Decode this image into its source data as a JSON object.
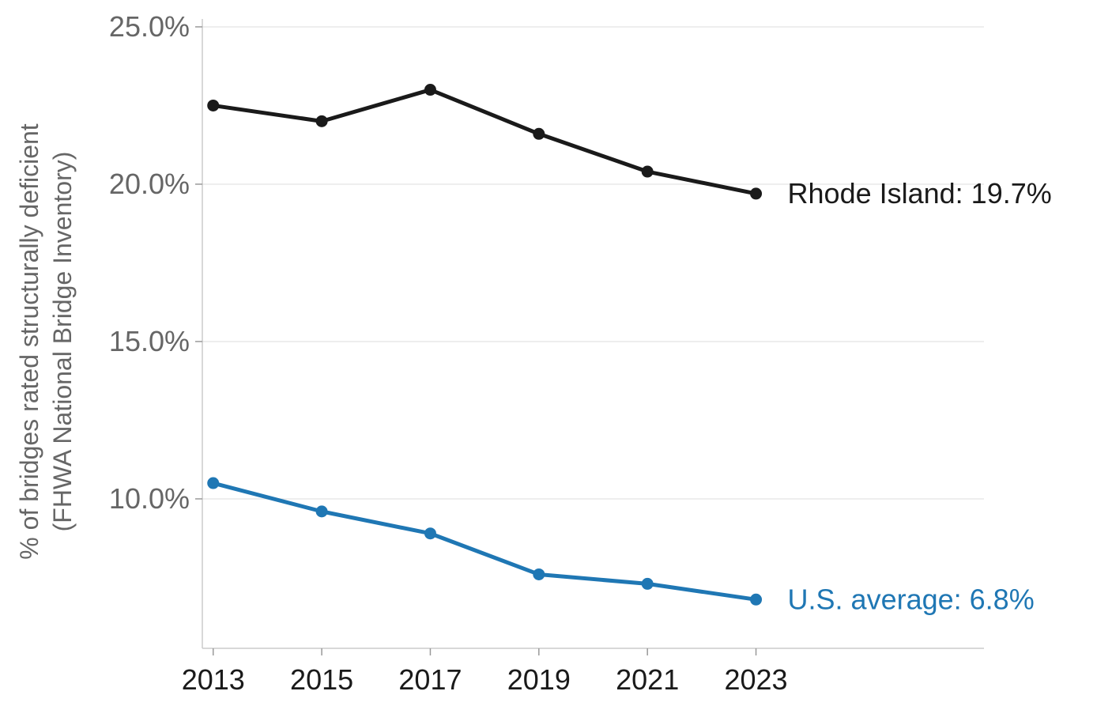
{
  "chart_data": {
    "type": "line",
    "title": "",
    "xlabel": "",
    "ylabel_lines": [
      "% of bridges rated structurally deficient",
      "(FHWA National Bridge Inventory)"
    ],
    "x": [
      2013,
      2015,
      2017,
      2019,
      2021,
      2023
    ],
    "x_tick_labels": [
      "2013",
      "2015",
      "2017",
      "2019",
      "2021",
      "2023"
    ],
    "xlim": [
      2012.8,
      2027.2
    ],
    "ylim": [
      5.25,
      25.25
    ],
    "y_ticks": [
      10,
      15,
      20,
      25
    ],
    "y_tick_labels": [
      "10.0%",
      "15.0%",
      "20.0%",
      "25.0%"
    ],
    "grid": "horizontal",
    "series": [
      {
        "values": [
          22.5,
          22.0,
          23.0,
          21.6,
          20.4,
          19.7
        ],
        "color": "#1a1a1a",
        "end_label": "Rhode Island: 19.7%"
      },
      {
        "values": [
          10.5,
          9.6,
          8.9,
          7.6,
          7.3,
          6.8
        ],
        "color": "#1f77b4",
        "end_label": "U.S. average: 6.8%"
      }
    ]
  }
}
